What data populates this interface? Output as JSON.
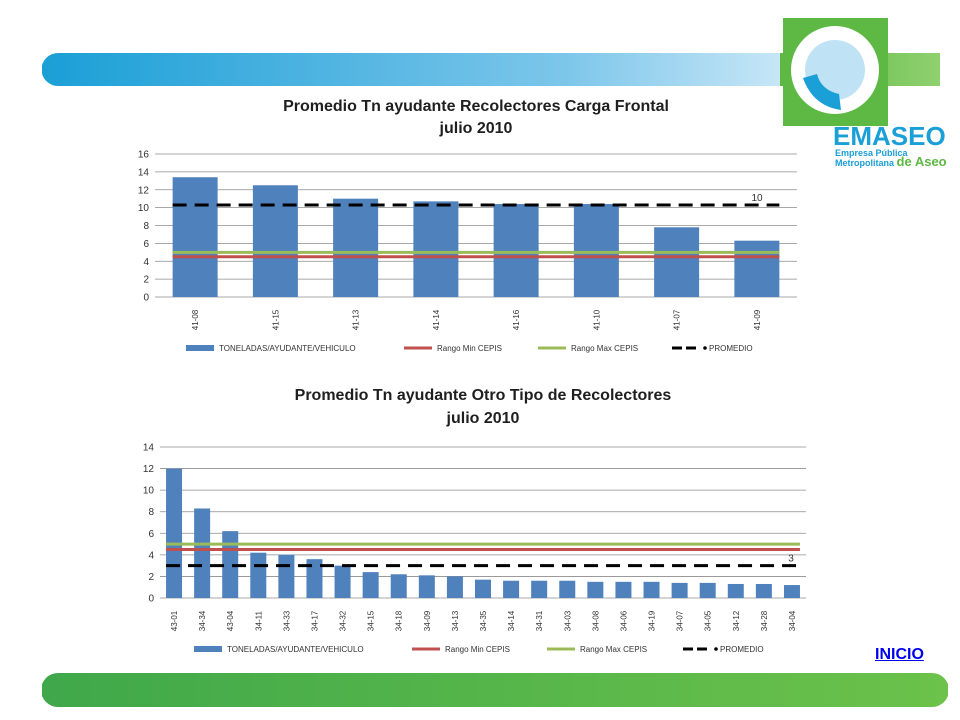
{
  "brand": {
    "name": "EMASEO",
    "line1": "Empresa Pública",
    "line2": "Metropolitana",
    "line2b": "de Aseo"
  },
  "link": {
    "inicio": "INICIO"
  },
  "colors": {
    "bar": "#4f81bd",
    "min": "#c0504d",
    "max": "#9bbb59",
    "avg": "#000000",
    "band_green": "#5db844",
    "band_blue": "#1a9fd6"
  },
  "legend": {
    "bar": "TONELADAS/AYUDANTE/VEHICULO",
    "min": "Rango Min CEPIS",
    "max": "Rango Max CEPIS",
    "avg": "PROMEDIO"
  },
  "chart_data": [
    {
      "type": "bar",
      "title": "Promedio Tn ayudante Recolectores Carga Frontal",
      "subtitle": "julio 2010",
      "categories": [
        "41-08",
        "41-15",
        "41-13",
        "41-14",
        "41-16",
        "41-10",
        "41-07",
        "41-09"
      ],
      "series": [
        {
          "name": "TONELADAS/AYUDANTE/VEHICULO",
          "type": "bar",
          "values": [
            13.4,
            12.5,
            11.0,
            10.7,
            10.4,
            10.4,
            7.8,
            6.3
          ]
        },
        {
          "name": "Rango Min CEPIS",
          "type": "line",
          "values": [
            4.5,
            4.5,
            4.5,
            4.5,
            4.5,
            4.5,
            4.5,
            4.5
          ]
        },
        {
          "name": "Rango Max CEPIS",
          "type": "line",
          "values": [
            5.0,
            5.0,
            5.0,
            5.0,
            5.0,
            5.0,
            5.0,
            5.0
          ]
        },
        {
          "name": "PROMEDIO",
          "type": "line",
          "values": [
            10.3,
            10.3,
            10.3,
            10.3,
            10.3,
            10.3,
            10.3,
            10.3
          ]
        }
      ],
      "annotation": "10",
      "ylim": [
        0,
        16
      ],
      "yticks": [
        0,
        2,
        4,
        6,
        8,
        10,
        12,
        14,
        16
      ],
      "grid": true,
      "legend_position": "bottom"
    },
    {
      "type": "bar",
      "title": "Promedio Tn ayudante Otro Tipo de Recolectores",
      "subtitle": "julio 2010",
      "categories": [
        "43-01",
        "34-34",
        "43-04",
        "34-11",
        "34-33",
        "34-17",
        "34-32",
        "34-15",
        "34-18",
        "34-09",
        "34-13",
        "34-35",
        "34-14",
        "34-31",
        "34-03",
        "34-08",
        "34-06",
        "34-19",
        "34-07",
        "34-05",
        "34-12",
        "34-28",
        "34-04"
      ],
      "series": [
        {
          "name": "TONELADAS/AYUDANTE/VEHICULO",
          "type": "bar",
          "values": [
            12.0,
            8.3,
            6.2,
            4.2,
            4.0,
            3.6,
            3.0,
            2.4,
            2.2,
            2.1,
            2.0,
            1.7,
            1.6,
            1.6,
            1.6,
            1.5,
            1.5,
            1.5,
            1.4,
            1.4,
            1.3,
            1.3,
            1.2
          ]
        },
        {
          "name": "Rango Min CEPIS",
          "type": "line",
          "values": [
            4.5,
            4.5,
            4.5,
            4.5,
            4.5,
            4.5,
            4.5,
            4.5,
            4.5,
            4.5,
            4.5,
            4.5,
            4.5,
            4.5,
            4.5,
            4.5,
            4.5,
            4.5,
            4.5,
            4.5,
            4.5,
            4.5,
            4.5
          ]
        },
        {
          "name": "Rango Max CEPIS",
          "type": "line",
          "values": [
            5.0,
            5.0,
            5.0,
            5.0,
            5.0,
            5.0,
            5.0,
            5.0,
            5.0,
            5.0,
            5.0,
            5.0,
            5.0,
            5.0,
            5.0,
            5.0,
            5.0,
            5.0,
            5.0,
            5.0,
            5.0,
            5.0,
            5.0
          ]
        },
        {
          "name": "PROMEDIO",
          "type": "line",
          "values": [
            3.0,
            3.0,
            3.0,
            3.0,
            3.0,
            3.0,
            3.0,
            3.0,
            3.0,
            3.0,
            3.0,
            3.0,
            3.0,
            3.0,
            3.0,
            3.0,
            3.0,
            3.0,
            3.0,
            3.0,
            3.0,
            3.0,
            3.0
          ]
        }
      ],
      "annotation": "3",
      "ylim": [
        0,
        14
      ],
      "yticks": [
        0,
        2,
        4,
        6,
        8,
        10,
        12,
        14
      ],
      "grid": true,
      "legend_position": "bottom"
    }
  ]
}
